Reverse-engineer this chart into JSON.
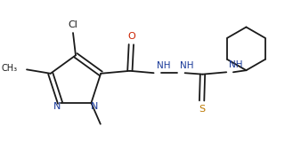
{
  "background_color": "#ffffff",
  "line_color": "#1a1a1a",
  "n_color": "#1a3a99",
  "o_color": "#cc2200",
  "s_color": "#bb7700",
  "lw": 1.3,
  "figsize": [
    3.38,
    1.78
  ],
  "dpi": 100,
  "xlim": [
    -0.5,
    10.5
  ],
  "ylim": [
    -0.5,
    5.3
  ]
}
